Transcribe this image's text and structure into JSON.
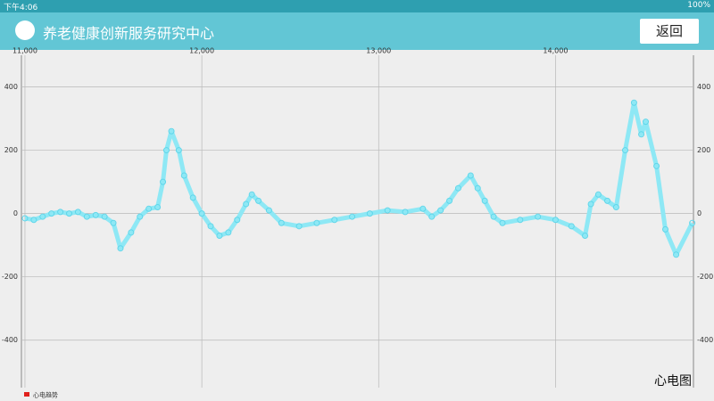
{
  "status_bar": {
    "time": "下午4:06",
    "battery": "100%"
  },
  "app_bar": {
    "title": "养老健康创新服务研究中心",
    "back_button": "返回"
  },
  "chart_data": {
    "type": "line",
    "description": "心电图",
    "x": [
      11000,
      11050,
      11100,
      11150,
      11200,
      11250,
      11300,
      11350,
      11400,
      11450,
      11500,
      11540,
      11600,
      11650,
      11700,
      11750,
      11780,
      11800,
      11828,
      11870,
      11900,
      11950,
      12000,
      12050,
      12100,
      12150,
      12200,
      12250,
      12283,
      12320,
      12380,
      12450,
      12550,
      12650,
      12750,
      12850,
      12950,
      13050,
      13150,
      13250,
      13300,
      13350,
      13400,
      13450,
      13520,
      13560,
      13600,
      13650,
      13700,
      13800,
      13900,
      14000,
      14090,
      14167,
      14200,
      14242,
      14293,
      14343,
      14394,
      14444,
      14485,
      14510,
      14571,
      14621,
      14682,
      14773
    ],
    "series": [
      {
        "name": "心电趋势",
        "color": "#8ee8f5",
        "legend_color": "#e0201c",
        "values": [
          -15,
          -20,
          -10,
          0,
          5,
          0,
          5,
          -10,
          -5,
          -10,
          -30,
          -110,
          -60,
          -10,
          15,
          20,
          100,
          200,
          260,
          200,
          120,
          50,
          0,
          -40,
          -70,
          -60,
          -20,
          30,
          60,
          40,
          10,
          -30,
          -40,
          -30,
          -20,
          -10,
          0,
          10,
          5,
          15,
          -10,
          10,
          40,
          80,
          120,
          80,
          40,
          -10,
          -30,
          -20,
          -10,
          -20,
          -40,
          -70,
          30,
          60,
          40,
          20,
          200,
          350,
          250,
          290,
          150,
          -50,
          -130,
          -30
        ]
      }
    ],
    "xlim": [
      10980,
      14780
    ],
    "xticks": [
      {
        "value": 11000,
        "label": "11,000"
      },
      {
        "value": 12000,
        "label": "12,000"
      },
      {
        "value": 13000,
        "label": "13,000"
      },
      {
        "value": 14000,
        "label": "14,000"
      }
    ],
    "ylim": [
      -550,
      500
    ],
    "yticks": [
      -400,
      -200,
      0,
      200,
      400
    ],
    "grid": true
  }
}
